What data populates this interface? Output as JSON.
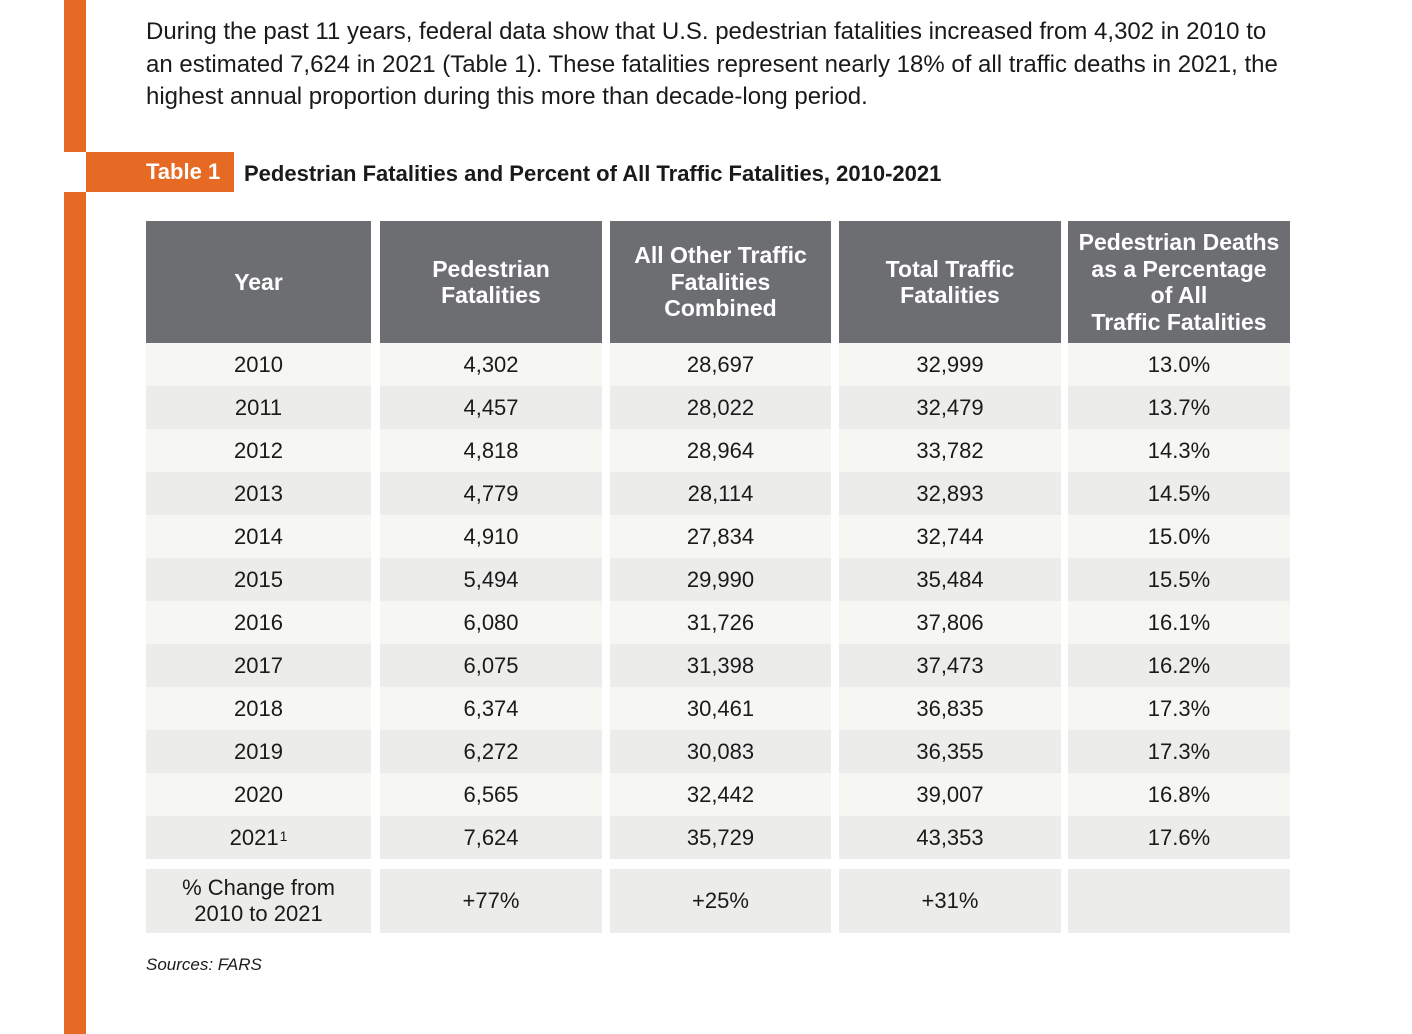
{
  "intro": "During the past 11 years, federal data show that U.S. pedestrian fatalities increased from 4,302 in 2010 to an estimated 7,624 in 2021 (Table 1). These fatalities represent nearly 18% of all traffic deaths in 2021, the highest annual proportion during this more than decade-long period.",
  "table_tag": "Table 1",
  "table_title": "Pedestrian Fatalities and Percent of All Traffic Fatalities, 2010-2021",
  "columns": [
    {
      "line1": "Year",
      "line2": "",
      "line3": "",
      "line4": ""
    },
    {
      "line1": "Pedestrian",
      "line2": "Fatalities",
      "line3": "",
      "line4": ""
    },
    {
      "line1": "All Other Traffic",
      "line2": "Fatalities",
      "line3": "Combined",
      "line4": ""
    },
    {
      "line1": "Total Traffic",
      "line2": "Fatalities",
      "line3": "",
      "line4": ""
    },
    {
      "line1": "Pedestrian Deaths",
      "line2": "as a Percentage",
      "line3": "of All",
      "line4": "Traffic Fatalities"
    }
  ],
  "rows": [
    {
      "year": "2010",
      "note": "",
      "ped": "4,302",
      "other": "28,697",
      "total": "32,999",
      "pct": "13.0%"
    },
    {
      "year": "2011",
      "note": "",
      "ped": "4,457",
      "other": "28,022",
      "total": "32,479",
      "pct": "13.7%"
    },
    {
      "year": "2012",
      "note": "",
      "ped": "4,818",
      "other": "28,964",
      "total": "33,782",
      "pct": "14.3%"
    },
    {
      "year": "2013",
      "note": "",
      "ped": "4,779",
      "other": "28,114",
      "total": "32,893",
      "pct": "14.5%"
    },
    {
      "year": "2014",
      "note": "",
      "ped": "4,910",
      "other": "27,834",
      "total": "32,744",
      "pct": "15.0%"
    },
    {
      "year": "2015",
      "note": "",
      "ped": "5,494",
      "other": "29,990",
      "total": "35,484",
      "pct": "15.5%"
    },
    {
      "year": "2016",
      "note": "",
      "ped": "6,080",
      "other": "31,726",
      "total": "37,806",
      "pct": "16.1%"
    },
    {
      "year": "2017",
      "note": "",
      "ped": "6,075",
      "other": "31,398",
      "total": "37,473",
      "pct": "16.2%"
    },
    {
      "year": "2018",
      "note": "",
      "ped": "6,374",
      "other": "30,461",
      "total": "36,835",
      "pct": "17.3%"
    },
    {
      "year": "2019",
      "note": "",
      "ped": "6,272",
      "other": "30,083",
      "total": "36,355",
      "pct": "17.3%"
    },
    {
      "year": "2020",
      "note": "",
      "ped": "6,565",
      "other": "32,442",
      "total": "39,007",
      "pct": "16.8%"
    },
    {
      "year": "2021",
      "note": "1",
      "ped": "7,624",
      "other": "35,729",
      "total": "43,353",
      "pct": "17.6%"
    }
  ],
  "change_row": {
    "label_line1": "% Change from",
    "label_line2": "2010 to 2021",
    "ped": "+77%",
    "other": "+25%",
    "total": "+31%",
    "pct": ""
  },
  "sources": "Sources: FARS",
  "colors": {
    "accent": "#e76a24",
    "header": "#6d6e71",
    "row_light": "#f6f6f3",
    "row_dark": "#ececea"
  }
}
